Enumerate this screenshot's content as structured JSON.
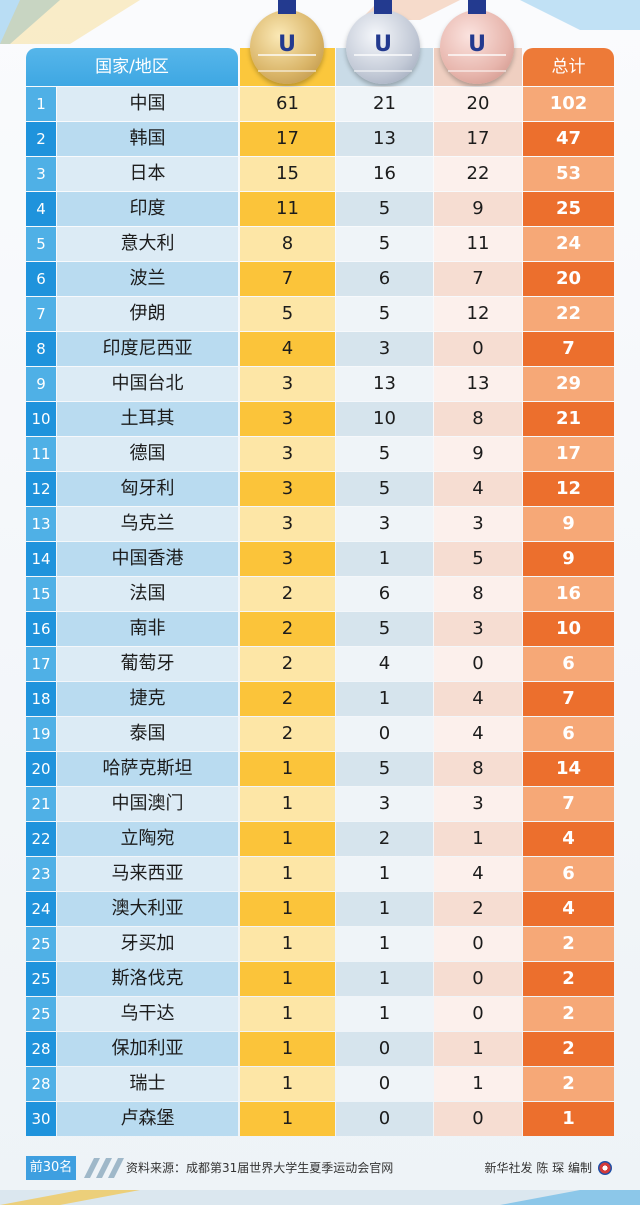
{
  "header": {
    "country": "国家/地区",
    "total": "总计"
  },
  "rows": [
    {
      "rank": "1",
      "name": "中国",
      "gold": "61",
      "silver": "21",
      "bronze": "20",
      "total": "102"
    },
    {
      "rank": "2",
      "name": "韩国",
      "gold": "17",
      "silver": "13",
      "bronze": "17",
      "total": "47"
    },
    {
      "rank": "3",
      "name": "日本",
      "gold": "15",
      "silver": "16",
      "bronze": "22",
      "total": "53"
    },
    {
      "rank": "4",
      "name": "印度",
      "gold": "11",
      "silver": "5",
      "bronze": "9",
      "total": "25"
    },
    {
      "rank": "5",
      "name": "意大利",
      "gold": "8",
      "silver": "5",
      "bronze": "11",
      "total": "24"
    },
    {
      "rank": "6",
      "name": "波兰",
      "gold": "7",
      "silver": "6",
      "bronze": "7",
      "total": "20"
    },
    {
      "rank": "7",
      "name": "伊朗",
      "gold": "5",
      "silver": "5",
      "bronze": "12",
      "total": "22"
    },
    {
      "rank": "8",
      "name": "印度尼西亚",
      "gold": "4",
      "silver": "3",
      "bronze": "0",
      "total": "7"
    },
    {
      "rank": "9",
      "name": "中国台北",
      "gold": "3",
      "silver": "13",
      "bronze": "13",
      "total": "29"
    },
    {
      "rank": "10",
      "name": "土耳其",
      "gold": "3",
      "silver": "10",
      "bronze": "8",
      "total": "21"
    },
    {
      "rank": "11",
      "name": "德国",
      "gold": "3",
      "silver": "5",
      "bronze": "9",
      "total": "17"
    },
    {
      "rank": "12",
      "name": "匈牙利",
      "gold": "3",
      "silver": "5",
      "bronze": "4",
      "total": "12"
    },
    {
      "rank": "13",
      "name": "乌克兰",
      "gold": "3",
      "silver": "3",
      "bronze": "3",
      "total": "9"
    },
    {
      "rank": "14",
      "name": "中国香港",
      "gold": "3",
      "silver": "1",
      "bronze": "5",
      "total": "9"
    },
    {
      "rank": "15",
      "name": "法国",
      "gold": "2",
      "silver": "6",
      "bronze": "8",
      "total": "16"
    },
    {
      "rank": "16",
      "name": "南非",
      "gold": "2",
      "silver": "5",
      "bronze": "3",
      "total": "10"
    },
    {
      "rank": "17",
      "name": "葡萄牙",
      "gold": "2",
      "silver": "4",
      "bronze": "0",
      "total": "6"
    },
    {
      "rank": "18",
      "name": "捷克",
      "gold": "2",
      "silver": "1",
      "bronze": "4",
      "total": "7"
    },
    {
      "rank": "19",
      "name": "泰国",
      "gold": "2",
      "silver": "0",
      "bronze": "4",
      "total": "6"
    },
    {
      "rank": "20",
      "name": "哈萨克斯坦",
      "gold": "1",
      "silver": "5",
      "bronze": "8",
      "total": "14"
    },
    {
      "rank": "21",
      "name": "中国澳门",
      "gold": "1",
      "silver": "3",
      "bronze": "3",
      "total": "7"
    },
    {
      "rank": "22",
      "name": "立陶宛",
      "gold": "1",
      "silver": "2",
      "bronze": "1",
      "total": "4"
    },
    {
      "rank": "23",
      "name": "马来西亚",
      "gold": "1",
      "silver": "1",
      "bronze": "4",
      "total": "6"
    },
    {
      "rank": "24",
      "name": "澳大利亚",
      "gold": "1",
      "silver": "1",
      "bronze": "2",
      "total": "4"
    },
    {
      "rank": "25",
      "name": "牙买加",
      "gold": "1",
      "silver": "1",
      "bronze": "0",
      "total": "2"
    },
    {
      "rank": "25",
      "name": "斯洛伐克",
      "gold": "1",
      "silver": "1",
      "bronze": "0",
      "total": "2"
    },
    {
      "rank": "25",
      "name": "乌干达",
      "gold": "1",
      "silver": "1",
      "bronze": "0",
      "total": "2"
    },
    {
      "rank": "28",
      "name": "保加利亚",
      "gold": "1",
      "silver": "0",
      "bronze": "1",
      "total": "2"
    },
    {
      "rank": "28",
      "name": "瑞士",
      "gold": "1",
      "silver": "0",
      "bronze": "1",
      "total": "2"
    },
    {
      "rank": "30",
      "name": "卢森堡",
      "gold": "1",
      "silver": "0",
      "bronze": "0",
      "total": "1"
    }
  ],
  "footer": {
    "tag": "前30名",
    "source": "资料来源：成都第31届世界大学生夏季运动会官网",
    "credit": "新华社发 陈 琛 编制"
  },
  "colors": {
    "gold": "#fbc43a",
    "silver": "#d6e4ed",
    "bronze": "#f6ddd2",
    "total": "#ec6f2d",
    "rank": "#1f93dc"
  }
}
